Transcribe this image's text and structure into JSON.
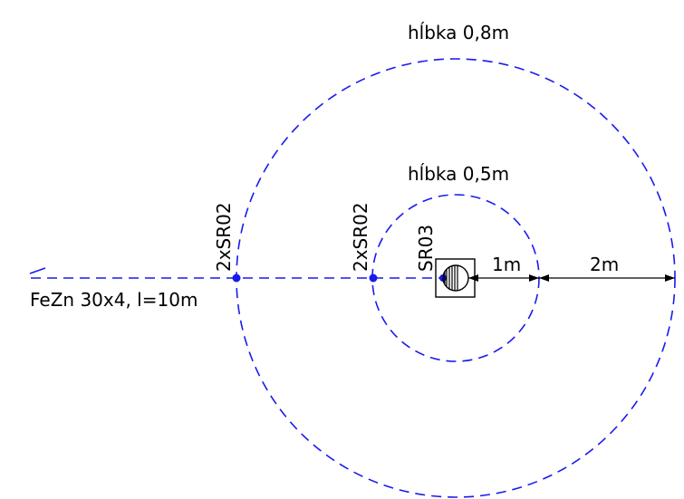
{
  "labels": {
    "outer_depth": "hĺbka 0,8m",
    "inner_depth": "hĺbka 0,5m",
    "connector_outer": "2xSR02",
    "connector_inner": "2xSR02",
    "connector_center": "SR03",
    "dim_inner": "1m",
    "dim_outer": "2m",
    "strip": "FeZn 30x4, l=10m"
  },
  "colors": {
    "conductor": "#1a1aee",
    "linework": "#000000",
    "background": "#ffffff"
  },
  "icons": {
    "ground_rod": "earth-electrode-symbol"
  }
}
